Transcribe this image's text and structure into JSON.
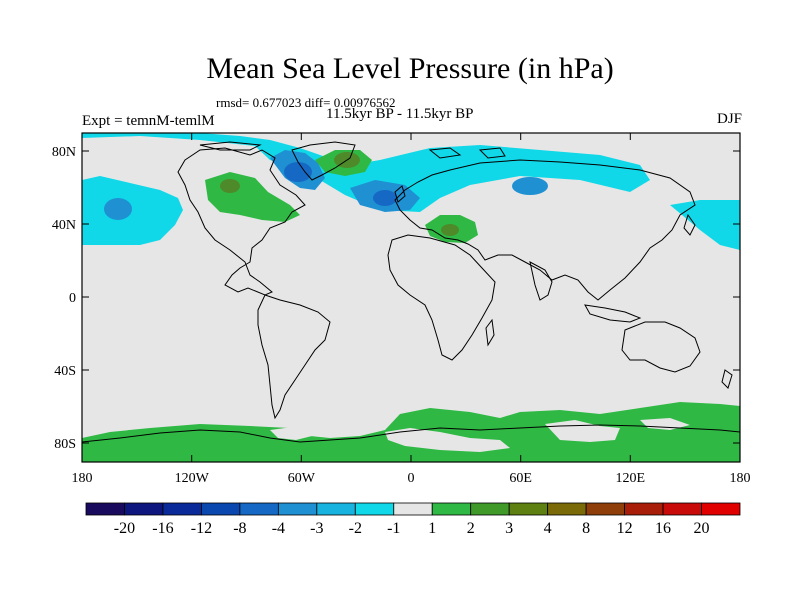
{
  "title": "Mean Sea Level Pressure (in hPa)",
  "stats": "rmsd= 0.677023 diff= 0.00976562",
  "experiment": "Expt = temnM-temlM",
  "period": "11.5kyr BP - 11.5kyr BP",
  "season": "DJF",
  "lon_ticks": [
    "180",
    "120W",
    "60W",
    "0",
    "60E",
    "120E",
    "180"
  ],
  "lat_ticks": [
    "80N",
    "40N",
    "0",
    "40S",
    "80S"
  ],
  "colorbar": {
    "labels": [
      "-20",
      "-16",
      "-12",
      "-8",
      "-4",
      "-3",
      "-2",
      "-1",
      "1",
      "2",
      "3",
      "4",
      "8",
      "12",
      "16",
      "20"
    ],
    "colors": [
      "#1a0a5e",
      "#0d157f",
      "#0a2a99",
      "#0a48b0",
      "#1569c4",
      "#1f90d2",
      "#18b3df",
      "#10d8e8",
      "#e6e6e6",
      "#2fb944",
      "#3f9a2a",
      "#5e7f12",
      "#7a6a08",
      "#8f3e0a",
      "#a81e08",
      "#c80a08",
      "#e00000"
    ]
  },
  "colors": {
    "ocean_land_neutral": "#e6e6e6",
    "positive_light": "#2fb944",
    "positive_mid": "#4e8a2a",
    "negative_light": "#10d8e8",
    "negative_mid": "#1f90d2",
    "negative_dark": "#1569c4"
  }
}
